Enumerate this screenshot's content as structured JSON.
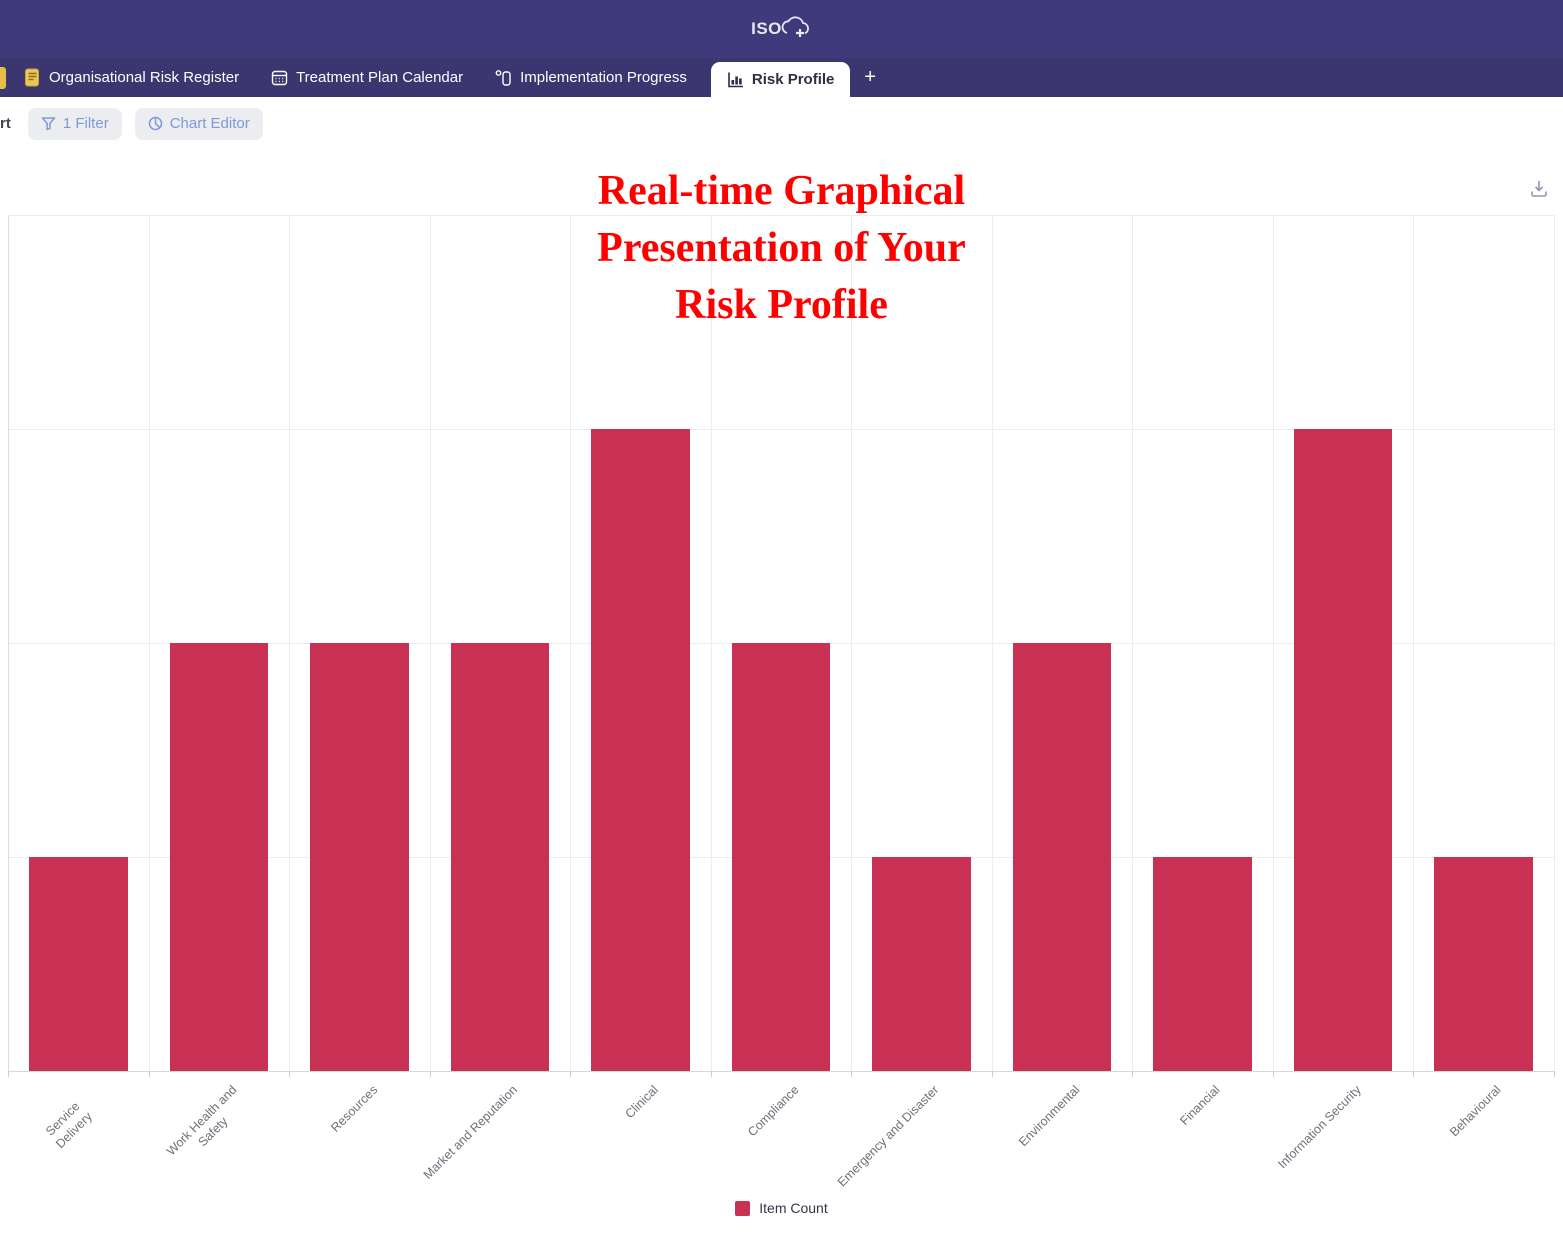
{
  "header": {
    "logo_text": "ISO"
  },
  "tabs": [
    {
      "label": "Organisational Risk Register",
      "icon": "scroll-icon",
      "active": false
    },
    {
      "label": "Treatment Plan Calendar",
      "icon": "calendar-icon",
      "active": false
    },
    {
      "label": "Implementation Progress",
      "icon": "progress-icon",
      "active": false
    },
    {
      "label": "Risk Profile",
      "icon": "bar-chart-icon",
      "active": true
    }
  ],
  "tab_add_label": "+",
  "toolbar": {
    "cutoff_view_title": "rt",
    "filter_label": "1 Filter",
    "chart_editor_label": "Chart Editor"
  },
  "annotation": {
    "lines": [
      "Real-time Graphical",
      "Presentation of Your",
      "Risk Profile"
    ],
    "color": "#FF0000"
  },
  "chart_data": {
    "type": "bar",
    "title": "",
    "categories": [
      "Service Delivery",
      "Work Health and\nSafety",
      "Resources",
      "Market and Reputation",
      "Clinical",
      "Compliance",
      "Emergency and Disaster",
      "Environmental",
      "Financial",
      "Information Security",
      "Behavioural"
    ],
    "series": [
      {
        "name": "Item Count",
        "color": "#C93154",
        "values": [
          1,
          2,
          2,
          2,
          3,
          2,
          1,
          2,
          1,
          3,
          1
        ]
      }
    ],
    "xlabel": "",
    "ylabel": "",
    "ylim": [
      0,
      4
    ],
    "grid": true,
    "legend_position": "bottom"
  },
  "colors": {
    "topbar": "#3F3A7C",
    "tabbar": "#3B366F",
    "bar": "#C93154",
    "annotation_red": "#FF0000"
  }
}
